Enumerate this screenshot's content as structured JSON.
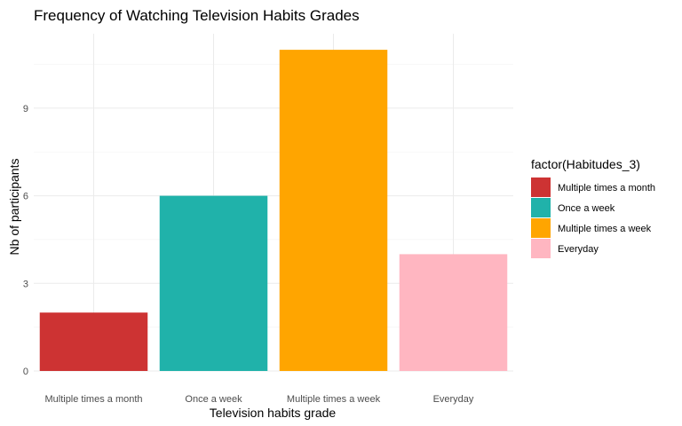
{
  "chart_data": {
    "type": "bar",
    "title": "Frequency of Watching Television Habits Grades",
    "xlabel": "Television habits grade",
    "ylabel": "Nb of participants",
    "categories": [
      "Multiple times a month",
      "Once a week",
      "Multiple times a week",
      "Everyday"
    ],
    "values": [
      2,
      6,
      11,
      4
    ],
    "colors": [
      "#CD3333",
      "#20B2AA",
      "#FFA500",
      "#FFB6C1"
    ],
    "ylim": [
      0,
      11.55
    ],
    "yticks": [
      0,
      3,
      6,
      9
    ],
    "grid": true,
    "legend": {
      "title": "factor(Habitudes_3)",
      "position": "right",
      "entries": [
        "Multiple times a month",
        "Once a week",
        "Multiple times a week",
        "Everyday"
      ]
    }
  }
}
